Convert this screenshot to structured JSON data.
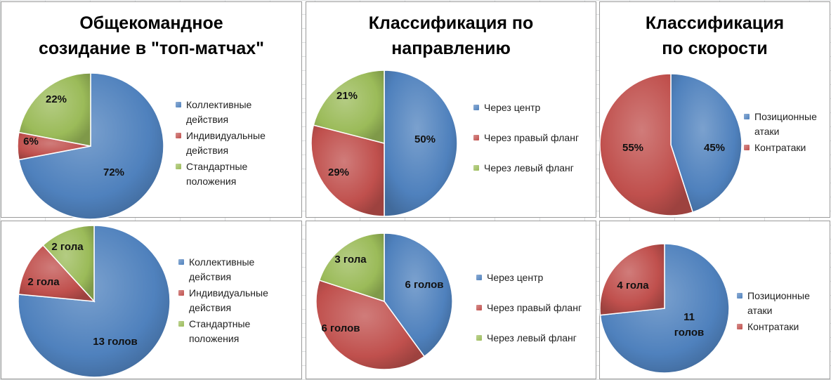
{
  "colors": {
    "blue": "#4f81bd",
    "red": "#c0504d",
    "green": "#9bbb59"
  },
  "panels": [
    {
      "id": "p1",
      "title": "Общекомандное\nсозидание в \"топ-матчах\"",
      "legend": [
        "Коллективные\nдействия",
        "Индивидуальные\nдействия",
        "Стандартные\nположения"
      ],
      "slices": [
        {
          "label": "72%",
          "value": 72,
          "color": "blue"
        },
        {
          "label": "6%",
          "value": 6,
          "color": "red"
        },
        {
          "label": "22%",
          "value": 22,
          "color": "green"
        }
      ]
    },
    {
      "id": "p2",
      "title": "Классификация  по\nнаправлению",
      "legend": [
        "Через центр",
        "Через правый фланг",
        "Через левый фланг"
      ],
      "slices": [
        {
          "label": "50%",
          "value": 50,
          "color": "blue"
        },
        {
          "label": "29%",
          "value": 29,
          "color": "red"
        },
        {
          "label": "21%",
          "value": 21,
          "color": "green"
        }
      ]
    },
    {
      "id": "p3",
      "title": "Классификация\nпо скорости",
      "legend": [
        "Позиционные\nатаки",
        "Контратаки"
      ],
      "slices": [
        {
          "label": "45%",
          "value": 45,
          "color": "blue"
        },
        {
          "label": "55%",
          "value": 55,
          "color": "red"
        }
      ]
    },
    {
      "id": "p4",
      "title": "",
      "legend": [
        "Коллективные\nдействия",
        "Индивидуальные\nдействия",
        "Стандартные\nположения"
      ],
      "slices": [
        {
          "label": "13 голов",
          "value": 13,
          "color": "blue"
        },
        {
          "label": "2 гола",
          "value": 2,
          "color": "red"
        },
        {
          "label": "2 гола",
          "value": 2,
          "color": "green"
        }
      ]
    },
    {
      "id": "p5",
      "title": "",
      "legend": [
        "Через центр",
        "Через правый фланг",
        "Через левый фланг"
      ],
      "slices": [
        {
          "label": "6 голов",
          "value": 6,
          "color": "blue"
        },
        {
          "label": "6 голов",
          "value": 6,
          "color": "red"
        },
        {
          "label": "3 гола",
          "value": 3,
          "color": "green"
        }
      ]
    },
    {
      "id": "p6",
      "title": "",
      "legend": [
        "Позиционные\nатаки",
        "Контратаки"
      ],
      "slices": [
        {
          "label": "11\nголов",
          "value": 11,
          "color": "blue"
        },
        {
          "label": "4 гола",
          "value": 4,
          "color": "red"
        }
      ]
    }
  ],
  "chart_data": [
    {
      "type": "pie",
      "title": "Общекомандное созидание в \"топ-матчах\"",
      "categories": [
        "Коллективные действия",
        "Индивидуальные действия",
        "Стандартные положения"
      ],
      "values": [
        72,
        6,
        22
      ],
      "unit": "%"
    },
    {
      "type": "pie",
      "title": "Классификация  по направлению",
      "categories": [
        "Через центр",
        "Через правый фланг",
        "Через левый фланг"
      ],
      "values": [
        50,
        29,
        21
      ],
      "unit": "%"
    },
    {
      "type": "pie",
      "title": "Классификация по скорости",
      "categories": [
        "Позиционные атаки",
        "Контратаки"
      ],
      "values": [
        45,
        55
      ],
      "unit": "%"
    },
    {
      "type": "pie",
      "title": "",
      "categories": [
        "Коллективные действия",
        "Индивидуальные действия",
        "Стандартные положения"
      ],
      "values": [
        13,
        2,
        2
      ],
      "unit": "goals"
    },
    {
      "type": "pie",
      "title": "",
      "categories": [
        "Через центр",
        "Через правый фланг",
        "Через левый фланг"
      ],
      "values": [
        6,
        6,
        3
      ],
      "unit": "goals"
    },
    {
      "type": "pie",
      "title": "",
      "categories": [
        "Позиционные атаки",
        "Контратаки"
      ],
      "values": [
        11,
        4
      ],
      "unit": "goals"
    }
  ]
}
